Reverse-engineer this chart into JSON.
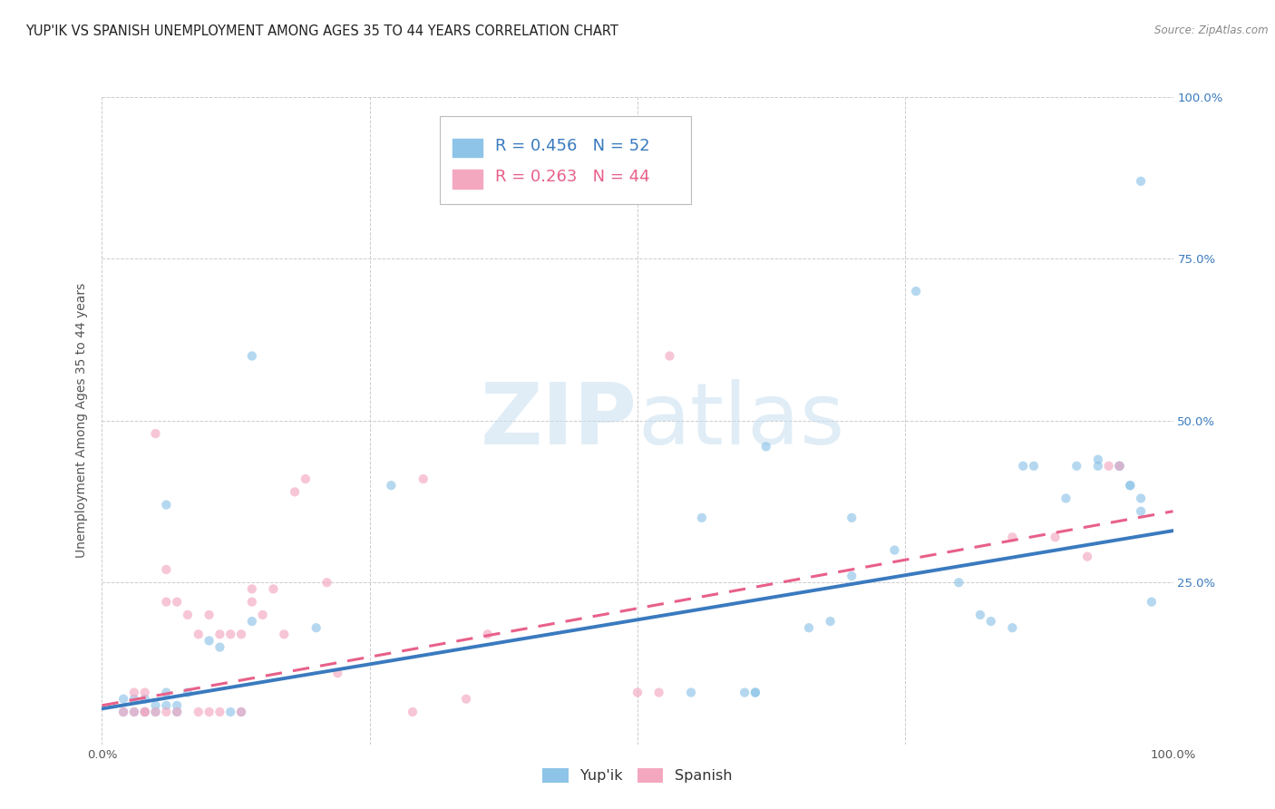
{
  "title": "YUP'IK VS SPANISH UNEMPLOYMENT AMONG AGES 35 TO 44 YEARS CORRELATION CHART",
  "source": "Source: ZipAtlas.com",
  "ylabel": "Unemployment Among Ages 35 to 44 years",
  "xlim": [
    0,
    1.0
  ],
  "ylim": [
    0,
    1.0
  ],
  "xticks": [
    0.0,
    0.25,
    0.5,
    0.75,
    1.0
  ],
  "yticks": [
    0.0,
    0.25,
    0.5,
    0.75,
    1.0
  ],
  "xticklabels": [
    "0.0%",
    "",
    "",
    "",
    "100.0%"
  ],
  "right_yticklabels": [
    "",
    "25.0%",
    "50.0%",
    "75.0%",
    "100.0%"
  ],
  "blue_color": "#8ec4e8",
  "pink_color": "#f4a8c0",
  "blue_line_color": "#3a7abf",
  "pink_line_color": "#e8608a",
  "watermark_color": "#c8dff0",
  "background_color": "#ffffff",
  "grid_color": "#cccccc",
  "yupik_x": [
    0.97,
    0.06,
    0.14,
    0.27,
    0.62,
    0.76,
    0.87,
    0.9,
    0.91,
    0.93,
    0.95,
    0.96,
    0.97,
    0.02,
    0.03,
    0.04,
    0.05,
    0.06,
    0.07,
    0.1,
    0.12,
    0.14,
    0.2,
    0.56,
    0.6,
    0.61,
    0.68,
    0.7,
    0.74,
    0.8,
    0.82,
    0.83,
    0.85,
    0.86,
    0.93,
    0.95,
    0.96,
    0.97,
    0.98,
    0.02,
    0.03,
    0.04,
    0.05,
    0.06,
    0.07,
    0.08,
    0.11,
    0.13,
    0.55,
    0.61,
    0.66,
    0.7
  ],
  "yupik_y": [
    0.87,
    0.37,
    0.6,
    0.4,
    0.46,
    0.7,
    0.43,
    0.38,
    0.43,
    0.43,
    0.43,
    0.4,
    0.36,
    0.05,
    0.05,
    0.05,
    0.05,
    0.08,
    0.05,
    0.16,
    0.05,
    0.19,
    0.18,
    0.35,
    0.08,
    0.08,
    0.19,
    0.26,
    0.3,
    0.25,
    0.2,
    0.19,
    0.18,
    0.43,
    0.44,
    0.43,
    0.4,
    0.38,
    0.22,
    0.07,
    0.07,
    0.07,
    0.06,
    0.06,
    0.06,
    0.08,
    0.15,
    0.05,
    0.08,
    0.08,
    0.18,
    0.35
  ],
  "spanish_x": [
    0.05,
    0.06,
    0.07,
    0.08,
    0.09,
    0.1,
    0.11,
    0.12,
    0.13,
    0.14,
    0.14,
    0.15,
    0.16,
    0.17,
    0.18,
    0.19,
    0.21,
    0.3,
    0.34,
    0.36,
    0.5,
    0.52,
    0.53,
    0.85,
    0.89,
    0.92,
    0.94,
    0.95,
    0.02,
    0.03,
    0.03,
    0.04,
    0.04,
    0.04,
    0.05,
    0.06,
    0.07,
    0.09,
    0.1,
    0.11,
    0.13,
    0.22,
    0.29,
    0.06
  ],
  "spanish_y": [
    0.48,
    0.27,
    0.22,
    0.2,
    0.17,
    0.2,
    0.17,
    0.17,
    0.17,
    0.24,
    0.22,
    0.2,
    0.24,
    0.17,
    0.39,
    0.41,
    0.25,
    0.41,
    0.07,
    0.17,
    0.08,
    0.08,
    0.6,
    0.32,
    0.32,
    0.29,
    0.43,
    0.43,
    0.05,
    0.05,
    0.08,
    0.05,
    0.08,
    0.05,
    0.05,
    0.05,
    0.05,
    0.05,
    0.05,
    0.05,
    0.05,
    0.11,
    0.05,
    0.22
  ],
  "yupik_trend_x": [
    0.0,
    1.0
  ],
  "yupik_trend_y": [
    0.055,
    0.33
  ],
  "spanish_trend_x": [
    0.0,
    1.0
  ],
  "spanish_trend_y": [
    0.06,
    0.36
  ],
  "title_fontsize": 10.5,
  "tick_fontsize": 9.5,
  "legend_fontsize": 13,
  "ylabel_fontsize": 10,
  "scatter_size": 55,
  "scatter_alpha": 0.65
}
